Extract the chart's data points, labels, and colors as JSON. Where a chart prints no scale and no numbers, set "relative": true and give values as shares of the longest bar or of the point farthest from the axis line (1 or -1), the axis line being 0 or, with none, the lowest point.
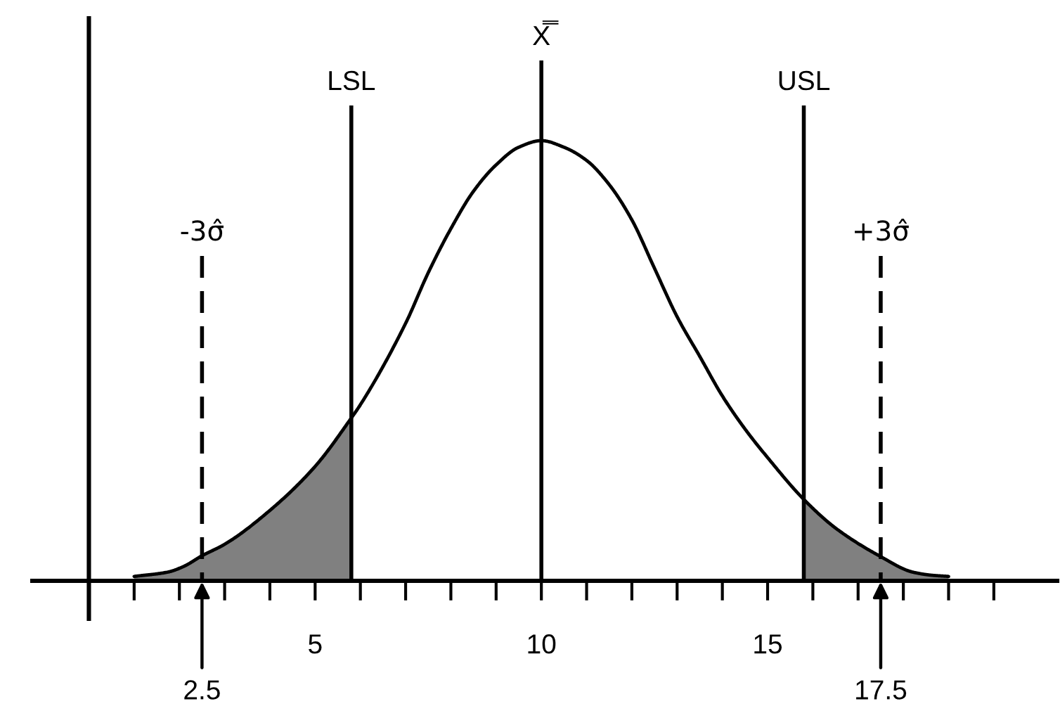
{
  "chart_data": {
    "type": "line",
    "relative": true,
    "series": [
      {
        "color": "#000000",
        "x": [
          1.0,
          1.75,
          2.1,
          2.5,
          3.0,
          4.0,
          5.0,
          5.8,
          6.0,
          7.0,
          7.5,
          8.0,
          8.5,
          9.0,
          9.5,
          10.0,
          10.5,
          11.0,
          11.5,
          12.0,
          12.5,
          13.0,
          13.5,
          14.0,
          14.5,
          15.0,
          15.8,
          16.5,
          17.5,
          18.2,
          18.6,
          19.0
        ],
        "values": [
          0.01,
          0.02,
          0.033,
          0.057,
          0.083,
          0.16,
          0.26,
          0.37,
          0.4,
          0.585,
          0.7,
          0.8,
          0.885,
          0.945,
          0.985,
          1.0,
          0.985,
          0.955,
          0.9,
          0.82,
          0.71,
          0.6,
          0.51,
          0.42,
          0.345,
          0.28,
          0.185,
          0.12,
          0.055,
          0.02,
          0.013,
          0.01
        ]
      },
      {
        "type": "area",
        "color": "#808080",
        "x": [
          1.0,
          1.75,
          2.1,
          2.5,
          3.0,
          4.0,
          5.0,
          5.8
        ],
        "values": [
          0.01,
          0.02,
          0.033,
          0.057,
          0.083,
          0.16,
          0.26,
          0.37
        ]
      },
      {
        "type": "area",
        "color": "#808080",
        "x": [
          15.8,
          16.5,
          17.5,
          18.2,
          18.6,
          19.0
        ],
        "values": [
          0.185,
          0.12,
          0.055,
          0.02,
          0.013,
          0.01
        ]
      }
    ],
    "xlim": [
      -1.25,
      21.4
    ],
    "xticks": [
      {
        "value": 0,
        "label": null
      },
      {
        "value": 1,
        "label": null
      },
      {
        "value": 2,
        "label": null
      },
      {
        "value": 3,
        "label": null
      },
      {
        "value": 4,
        "label": null
      },
      5,
      {
        "value": 6,
        "label": null
      },
      {
        "value": 7,
        "label": null
      },
      {
        "value": 8,
        "label": null
      },
      {
        "value": 9,
        "label": null
      },
      10,
      {
        "value": 11,
        "label": null
      },
      {
        "value": 12,
        "label": null
      },
      {
        "value": 13,
        "label": null
      },
      {
        "value": 14,
        "label": null
      },
      15,
      {
        "value": 16,
        "label": null
      },
      {
        "value": 17,
        "label": null
      },
      {
        "value": 18,
        "label": null
      },
      {
        "value": 19,
        "label": null
      },
      {
        "value": 20,
        "label": null
      }
    ],
    "tick_labels": "x",
    "ref_lines": [
      {
        "axis": "x",
        "value": 2.5,
        "label": "-3σ̂",
        "line_style": "dashed",
        "color": "#000000"
      },
      {
        "axis": "x",
        "value": 5.8,
        "label": "LSL",
        "color": "#000000"
      },
      {
        "axis": "x",
        "value": 10,
        "label": "X̿",
        "color": "#000000"
      },
      {
        "axis": "x",
        "value": 15.8,
        "label": "USL",
        "color": "#000000"
      },
      {
        "axis": "x",
        "value": 17.5,
        "label": "+3σ̂",
        "line_style": "dashed",
        "color": "#000000"
      }
    ],
    "annotations": [
      {
        "text": "2.5",
        "x": 2.5,
        "y": 0
      },
      {
        "text": "17.5",
        "x": 17.5,
        "y": 0
      }
    ]
  }
}
